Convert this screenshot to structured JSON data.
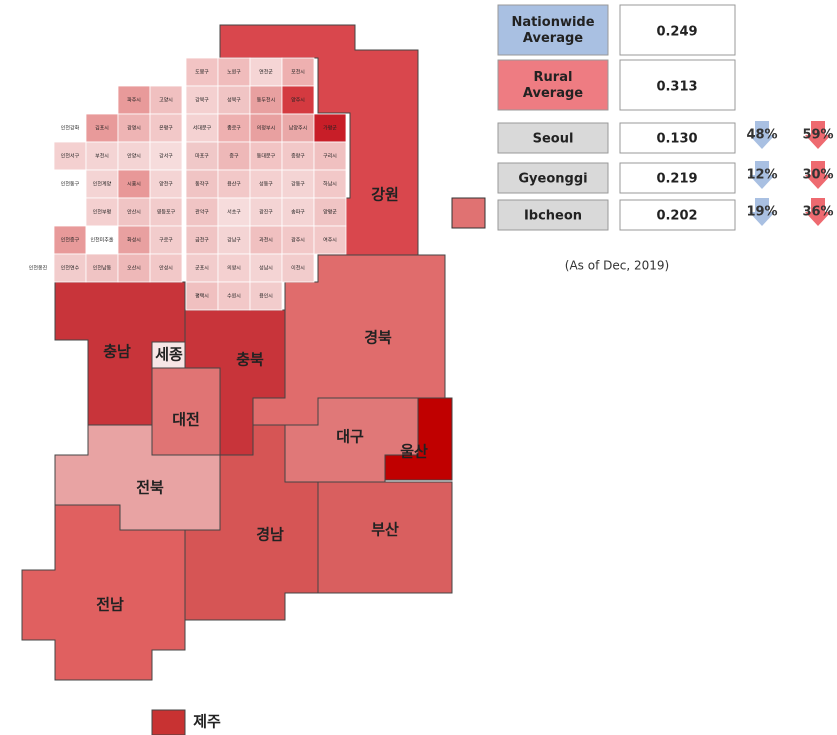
{
  "regions": [
    {
      "label": "강원",
      "color": "#d9474d"
    },
    {
      "label": "경북",
      "color": "#e06c6c"
    },
    {
      "label": "충남",
      "color": "#c8343a"
    },
    {
      "label": "세종",
      "color": "#f7e6e6"
    },
    {
      "label": "충북",
      "color": "#c8343a"
    },
    {
      "label": "대전",
      "color": "#e07474"
    },
    {
      "label": "전북",
      "color": "#e8a3a3"
    },
    {
      "label": "전남",
      "color": "#e06060"
    },
    {
      "label": "경남",
      "color": "#d65555"
    },
    {
      "label": "대구",
      "color": "#e07878"
    },
    {
      "label": "울산",
      "color": "#c00000"
    },
    {
      "label": "부산",
      "color": "#d95f5f"
    },
    {
      "label": "제주",
      "color": "#c83232"
    }
  ],
  "tiles": [
    {
      "label": "도봉구",
      "color": "#f2c4c4"
    },
    {
      "label": "노원구",
      "color": "#f0bcbc"
    },
    {
      "label": "연천군",
      "color": "#f5d5d5"
    },
    {
      "label": "포천시",
      "color": "#eeb0b0"
    },
    {
      "label": "파주시",
      "color": "#e89a9a"
    },
    {
      "label": "고양시",
      "color": "#f0c0c0"
    },
    {
      "label": "강북구",
      "color": "#f4d0d0"
    },
    {
      "label": "성북구",
      "color": "#f0c4c4"
    },
    {
      "label": "동두천시",
      "color": "#e8a0a0"
    },
    {
      "label": "양주시",
      "color": "#d43a40"
    },
    {
      "label": "인천강화",
      "color": "#ffffff"
    },
    {
      "label": "김포시",
      "color": "#e89a9a"
    },
    {
      "label": "광명시",
      "color": "#eeb4b4"
    },
    {
      "label": "은평구",
      "color": "#f2c8c8"
    },
    {
      "label": "서대문구",
      "color": "#f4d2d2"
    },
    {
      "label": "종로구",
      "color": "#eeb0b0"
    },
    {
      "label": "의정부시",
      "color": "#e8a0a0"
    },
    {
      "label": "남양주시",
      "color": "#eaa8a8"
    },
    {
      "label": "가평군",
      "color": "#c81e28"
    },
    {
      "label": "인천서구",
      "color": "#f4d0d0"
    },
    {
      "label": "부천시",
      "color": "#f4d4d4"
    },
    {
      "label": "안양시",
      "color": "#f4d4d4"
    },
    {
      "label": "강서구",
      "color": "#f6dcdc"
    },
    {
      "label": "마포구",
      "color": "#f0c8c8"
    },
    {
      "label": "중구",
      "color": "#eeb8b8"
    },
    {
      "label": "동대문구",
      "color": "#f2c4c4"
    },
    {
      "label": "중랑구",
      "color": "#f2c8c8"
    },
    {
      "label": "구리시",
      "color": "#f0c0c0"
    },
    {
      "label": "인천동구",
      "color": "#ffffff"
    },
    {
      "label": "인천계양",
      "color": "#f4d4d4"
    },
    {
      "label": "시흥시",
      "color": "#e89898"
    },
    {
      "label": "양천구",
      "color": "#f4d4d4"
    },
    {
      "label": "동작구",
      "color": "#f0c4c4"
    },
    {
      "label": "용산구",
      "color": "#f2c8c8"
    },
    {
      "label": "성동구",
      "color": "#f4d0d0"
    },
    {
      "label": "강동구",
      "color": "#f4d4d4"
    },
    {
      "label": "하남시",
      "color": "#f2c8c8"
    },
    {
      "label": "인천부평",
      "color": "#f4d0d0"
    },
    {
      "label": "안산시",
      "color": "#f0c4c4"
    },
    {
      "label": "영등포구",
      "color": "#f2cccc"
    },
    {
      "label": "관악구",
      "color": "#f0c4c4"
    },
    {
      "label": "서초구",
      "color": "#f6dcdc"
    },
    {
      "label": "광진구",
      "color": "#f4d4d4"
    },
    {
      "label": "송파구",
      "color": "#f4d4d4"
    },
    {
      "label": "양평군",
      "color": "#f0c4c4"
    },
    {
      "label": "인천중구",
      "color": "#e89a9a"
    },
    {
      "label": "인천미추홀",
      "color": "#ffffff"
    },
    {
      "label": "화성시",
      "color": "#e8a0a0"
    },
    {
      "label": "구로구",
      "color": "#f2cccc"
    },
    {
      "label": "금천구",
      "color": "#f0c4c4"
    },
    {
      "label": "강남구",
      "color": "#f4d4d4"
    },
    {
      "label": "과천시",
      "color": "#f0c0c0"
    },
    {
      "label": "광주시",
      "color": "#f2c8c8"
    },
    {
      "label": "여주시",
      "color": "#f2c8c8"
    },
    {
      "label": "인천옹진",
      "color": "#ffffff"
    },
    {
      "label": "인천연수",
      "color": "#f2cccc"
    },
    {
      "label": "인천남동",
      "color": "#f0c4c4"
    },
    {
      "label": "오산시",
      "color": "#eeb8b8"
    },
    {
      "label": "안성시",
      "color": "#f2c8c8"
    },
    {
      "label": "군포시",
      "color": "#f2cccc"
    },
    {
      "label": "의왕시",
      "color": "#f4d0d0"
    },
    {
      "label": "성남시",
      "color": "#f4d4d4"
    },
    {
      "label": "이천시",
      "color": "#f2cccc"
    },
    {
      "label": "평택시",
      "color": "#f0c0c0"
    },
    {
      "label": "수원시",
      "color": "#f2c8c8"
    },
    {
      "label": "용인시",
      "color": "#f2cccc"
    }
  ],
  "summary": [
    {
      "label": "Nationwide Average",
      "value": "0.249",
      "color": "#a9c0e2"
    },
    {
      "label": "Rural Average",
      "value": "0.313",
      "color": "#ee7c82"
    }
  ],
  "comparisons": [
    {
      "label": "Seoul",
      "value": "0.130",
      "vs_nationwide": "48%",
      "vs_rural": "59%"
    },
    {
      "label": "Gyeonggi",
      "value": "0.219",
      "vs_nationwide": "12%",
      "vs_rural": "30%"
    },
    {
      "label": "Ibcheon",
      "value": "0.202",
      "vs_nationwide": "19%",
      "vs_rural": "36%"
    }
  ],
  "note": "(As of Dec, 2019)"
}
